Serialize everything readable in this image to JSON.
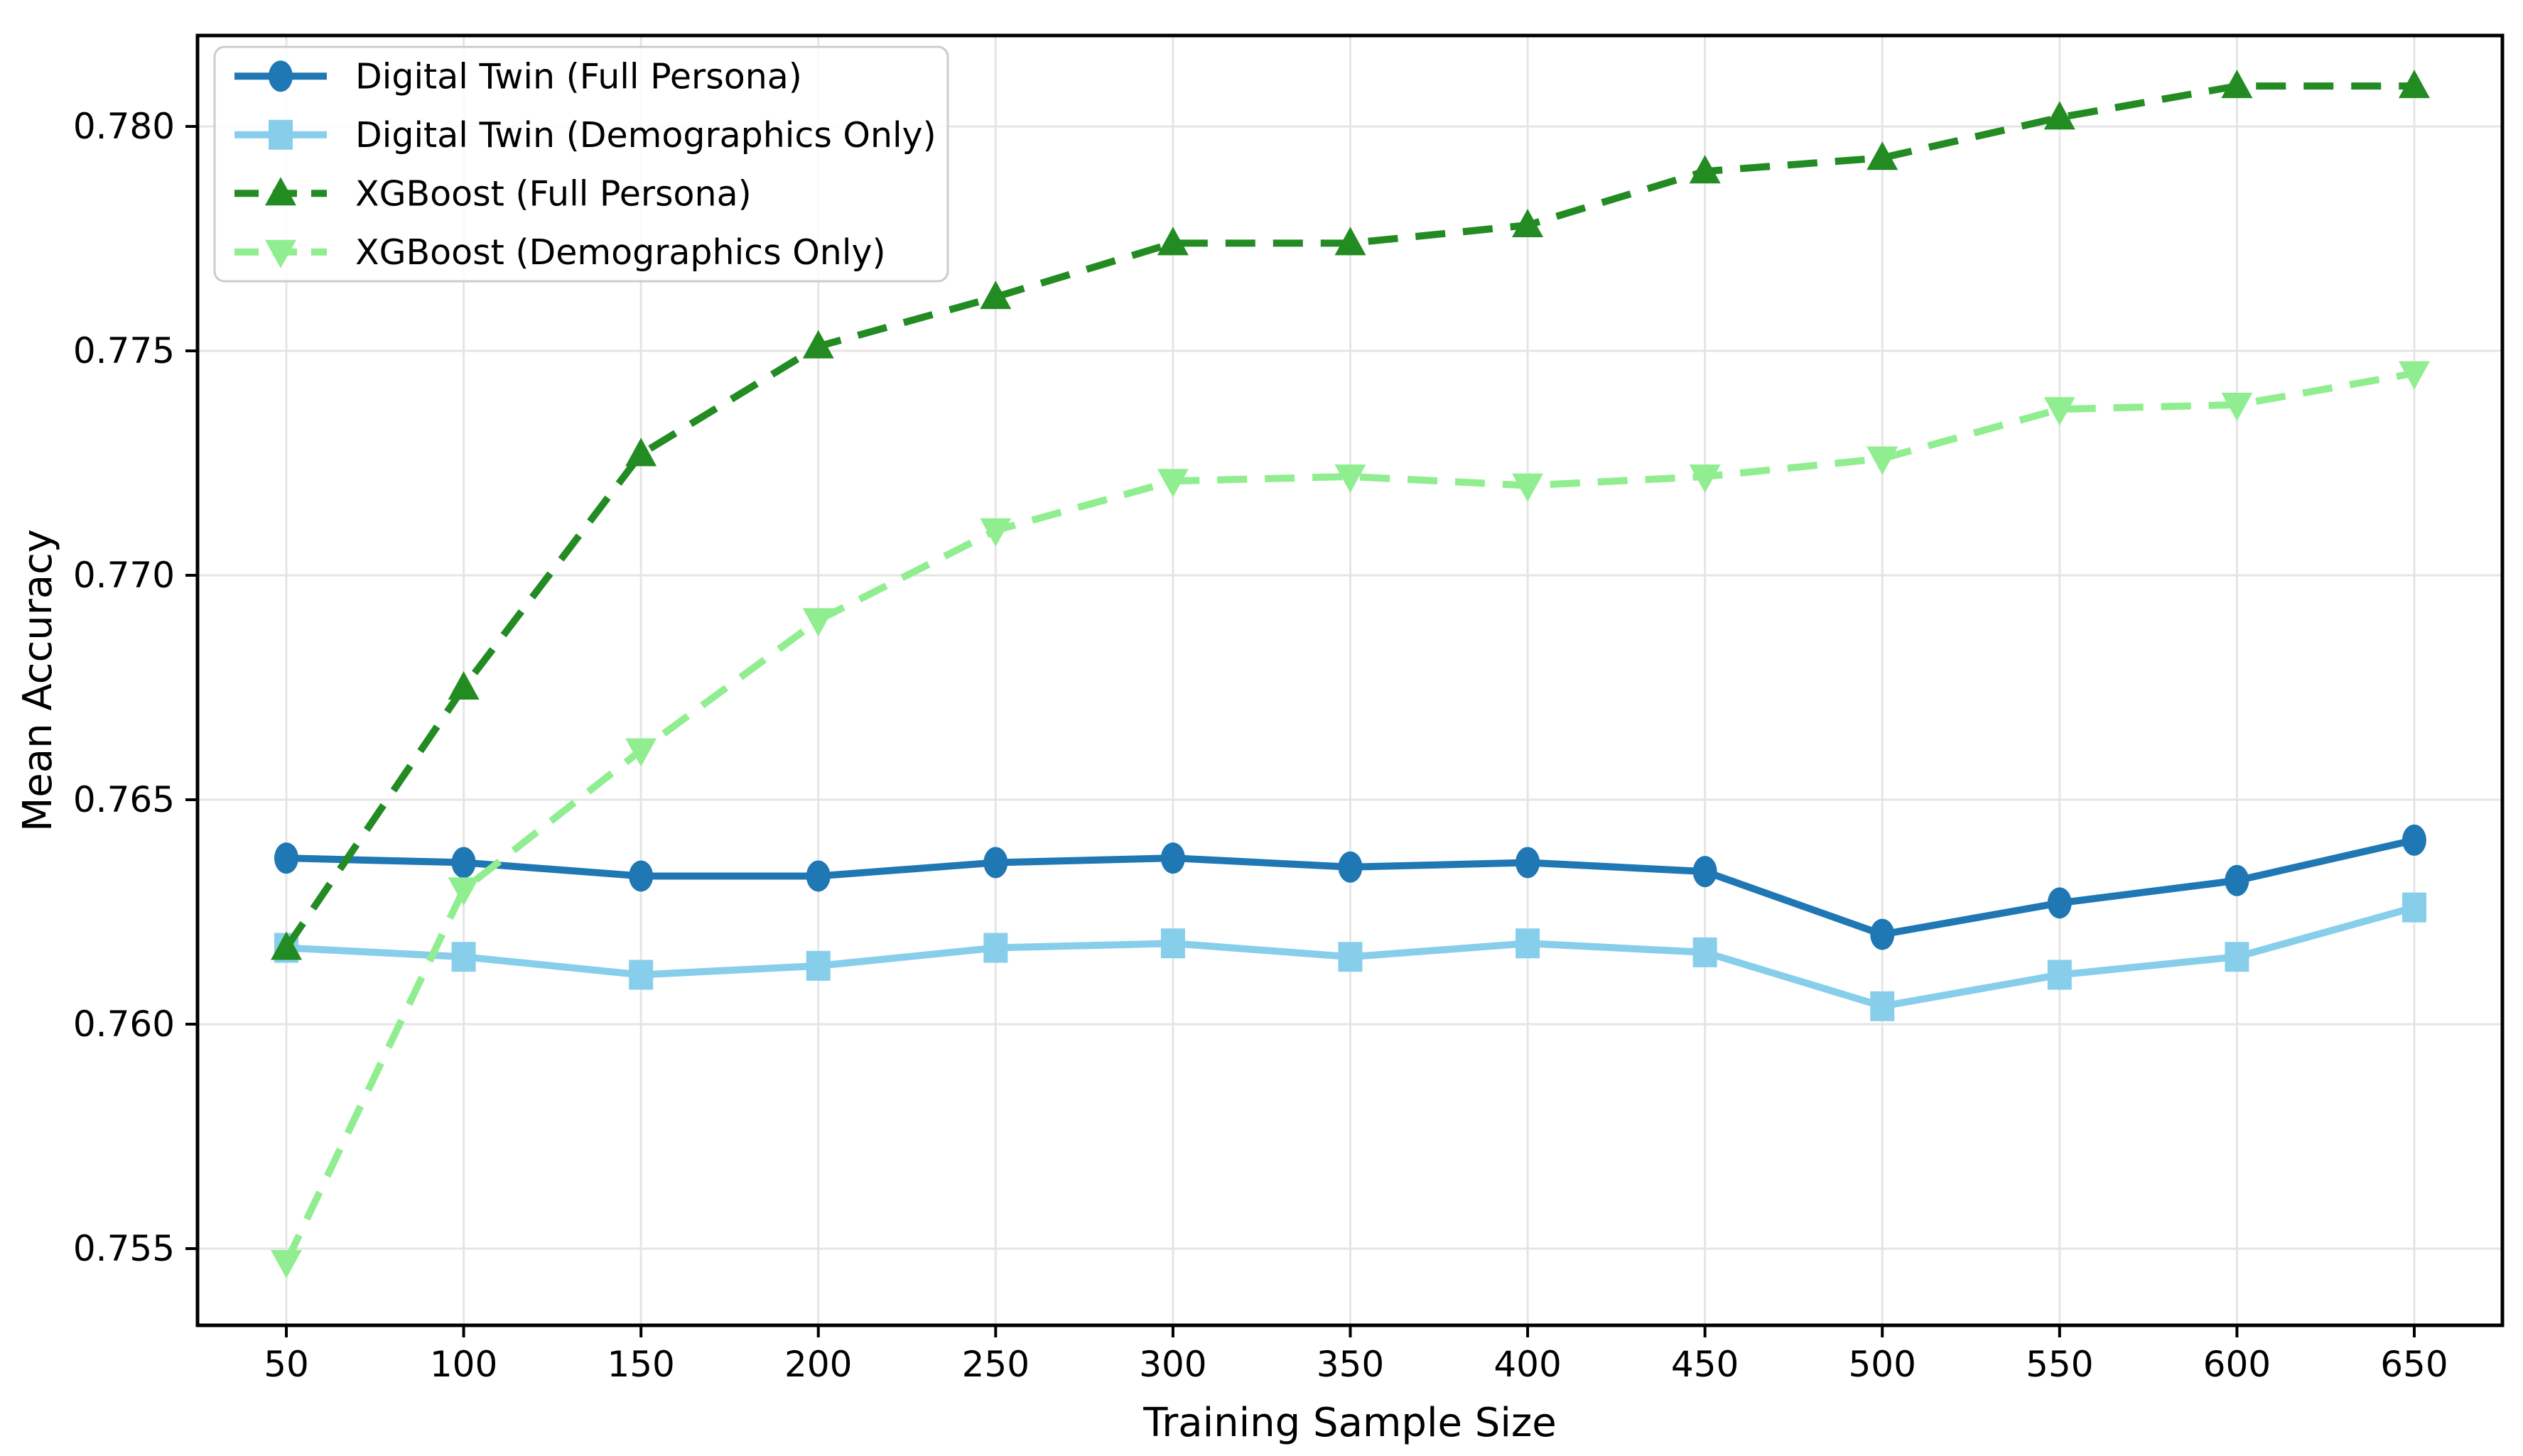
{
  "chart_data": {
    "type": "line",
    "title": "",
    "xlabel": "Training Sample Size",
    "ylabel": "Mean Accuracy",
    "x": [
      50,
      100,
      150,
      200,
      250,
      300,
      350,
      400,
      450,
      500,
      550,
      600,
      650
    ],
    "x_tick_labels": [
      "50",
      "100",
      "150",
      "200",
      "250",
      "300",
      "350",
      "400",
      "450",
      "500",
      "550",
      "600",
      "650"
    ],
    "y_ticks": [
      0.755,
      0.76,
      0.765,
      0.77,
      0.775,
      0.78
    ],
    "y_tick_labels": [
      "0.755",
      "0.760",
      "0.765",
      "0.770",
      "0.775",
      "0.780"
    ],
    "xlim": [
      25,
      675
    ],
    "ylim": [
      0.7533,
      0.782
    ],
    "grid": true,
    "grid_color": "#e5e5e5",
    "spine_color": "#000000",
    "legend_position": "upper left",
    "legend_border_color": "#cccccc",
    "series": [
      {
        "name": "Digital Twin (Full Persona)",
        "color": "#1f77b4",
        "style": "solid",
        "marker": "circle",
        "values": [
          0.7637,
          0.7636,
          0.7633,
          0.7633,
          0.7636,
          0.7637,
          0.7635,
          0.7636,
          0.7634,
          0.762,
          0.7627,
          0.7632,
          0.7641
        ]
      },
      {
        "name": "Digital Twin (Demographics Only)",
        "color": "#87ceeb",
        "style": "solid",
        "marker": "square",
        "values": [
          0.7617,
          0.7615,
          0.7611,
          0.7613,
          0.7617,
          0.7618,
          0.7615,
          0.7618,
          0.7616,
          0.7604,
          0.7611,
          0.7615,
          0.7626
        ]
      },
      {
        "name": "XGBoost (Full Persona)",
        "color": "#228b22",
        "style": "dashed",
        "marker": "triangle-up",
        "values": [
          0.7617,
          0.7675,
          0.7727,
          0.7751,
          0.7762,
          0.7774,
          0.7774,
          0.7778,
          0.779,
          0.7793,
          0.7802,
          0.7809,
          0.7809
        ]
      },
      {
        "name": "XGBoost (Demographics Only)",
        "color": "#90ee90",
        "style": "dashed",
        "marker": "triangle-down",
        "values": [
          0.7547,
          0.763,
          0.7661,
          0.769,
          0.771,
          0.7721,
          0.7722,
          0.772,
          0.7722,
          0.7726,
          0.7737,
          0.7738,
          0.7745
        ]
      }
    ]
  }
}
